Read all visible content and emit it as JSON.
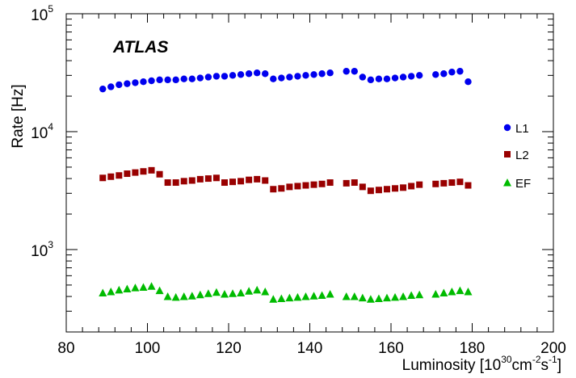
{
  "chart_data": {
    "type": "scatter",
    "annotation": "ATLAS",
    "xlabel": {
      "prefix": "Luminosity [10",
      "exp1": "30",
      "mid1": "cm",
      "exp2": "-2",
      "mid2": "s",
      "exp3": "-1",
      "suffix": "]"
    },
    "ylabel": "Rate [Hz]",
    "xlim": [
      80,
      200
    ],
    "ylim": [
      200,
      100000
    ],
    "yscale": "log",
    "grid": false,
    "legend_position": "right",
    "x_ticks": [
      80,
      100,
      120,
      140,
      160,
      180,
      200
    ],
    "y_ticks": [
      {
        "value": 1000,
        "base": "10",
        "exp": "3"
      },
      {
        "value": 10000,
        "base": "10",
        "exp": "4"
      },
      {
        "value": 100000,
        "base": "10",
        "exp": "5"
      }
    ],
    "x": [
      89,
      91,
      93,
      95,
      97,
      99,
      101,
      103,
      105,
      107,
      109,
      111,
      113,
      115,
      117,
      119,
      121,
      123,
      125,
      127,
      129,
      131,
      133,
      135,
      137,
      139,
      141,
      143,
      145,
      149,
      151,
      153,
      155,
      157,
      159,
      161,
      163,
      165,
      167,
      171,
      173,
      175,
      177,
      179
    ],
    "series": [
      {
        "name": "L1",
        "marker": "circle",
        "color": "#0000ee",
        "values": [
          23000,
          24000,
          25000,
          25500,
          26000,
          26500,
          27000,
          27500,
          27500,
          27500,
          28000,
          28000,
          28500,
          29000,
          29500,
          29500,
          30000,
          30500,
          31000,
          31500,
          31000,
          28000,
          28500,
          29000,
          29500,
          30000,
          30500,
          31000,
          31500,
          32500,
          32500,
          29000,
          27500,
          28000,
          28000,
          28500,
          29000,
          29500,
          30000,
          30500,
          31000,
          32000,
          32500,
          26500
        ]
      },
      {
        "name": "L2",
        "marker": "square",
        "color": "#990000",
        "values": [
          4050,
          4150,
          4250,
          4400,
          4500,
          4600,
          4700,
          4350,
          3700,
          3700,
          3800,
          3850,
          3950,
          4000,
          4050,
          3700,
          3750,
          3800,
          3900,
          3950,
          3850,
          3250,
          3300,
          3400,
          3450,
          3500,
          3550,
          3600,
          3700,
          3650,
          3700,
          3400,
          3150,
          3200,
          3250,
          3300,
          3350,
          3450,
          3550,
          3600,
          3650,
          3700,
          3750,
          3500
        ]
      },
      {
        "name": "EF",
        "marker": "triangle",
        "color": "#00bb00",
        "values": [
          430,
          440,
          455,
          465,
          475,
          480,
          490,
          450,
          400,
          395,
          400,
          405,
          415,
          425,
          435,
          420,
          425,
          430,
          445,
          455,
          440,
          380,
          385,
          390,
          395,
          400,
          405,
          410,
          420,
          400,
          400,
          390,
          380,
          385,
          390,
          395,
          400,
          410,
          415,
          420,
          430,
          440,
          450,
          440
        ]
      }
    ]
  }
}
